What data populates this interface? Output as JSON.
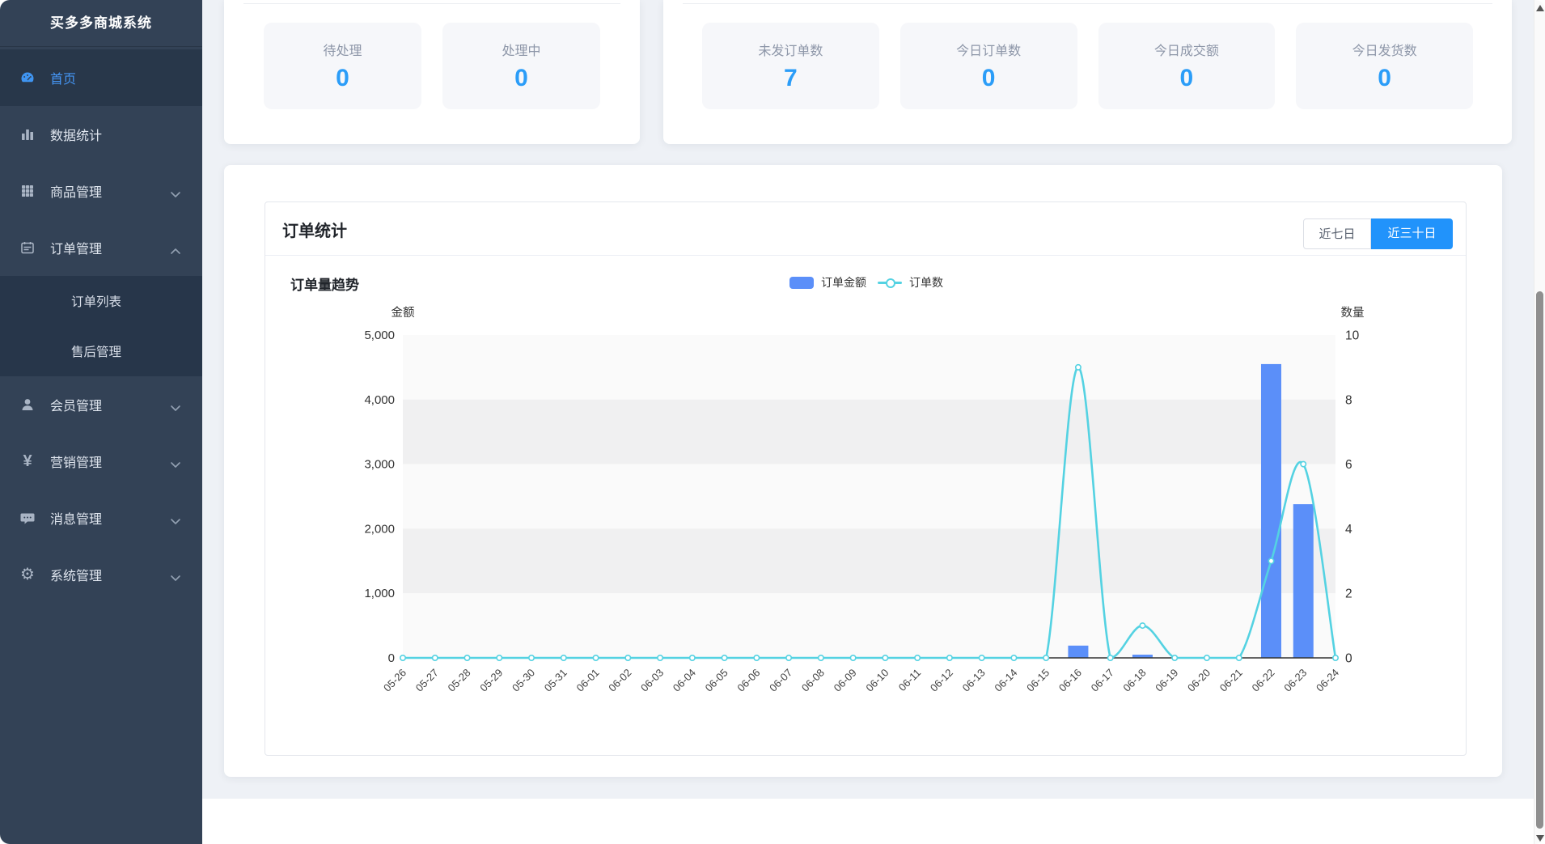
{
  "sidebar": {
    "title": "买多多商城系统",
    "items": [
      {
        "label": "首页",
        "icon": "dashboard-icon",
        "active": true,
        "chevron": null
      },
      {
        "label": "数据统计",
        "icon": "bar-chart-icon",
        "active": false,
        "chevron": null
      },
      {
        "label": "商品管理",
        "icon": "grid-icon",
        "active": false,
        "chevron": "down"
      },
      {
        "label": "订单管理",
        "icon": "order-icon",
        "active": false,
        "chevron": "up"
      },
      {
        "label": "会员管理",
        "icon": "user-icon",
        "active": false,
        "chevron": "down"
      },
      {
        "label": "营销管理",
        "icon": "yen-icon",
        "active": false,
        "chevron": "down"
      },
      {
        "label": "消息管理",
        "icon": "message-icon",
        "active": false,
        "chevron": "down"
      },
      {
        "label": "系统管理",
        "icon": "gear-icon",
        "active": false,
        "chevron": "down"
      }
    ],
    "submenu_parent": "订单管理",
    "submenu": [
      {
        "label": "订单列表"
      },
      {
        "label": "售后管理"
      }
    ]
  },
  "stats_card_1": {
    "items": [
      {
        "label": "待处理",
        "value": "0"
      },
      {
        "label": "处理中",
        "value": "0"
      }
    ]
  },
  "stats_card_2": {
    "items": [
      {
        "label": "未发订单数",
        "value": "7"
      },
      {
        "label": "今日订单数",
        "value": "0"
      },
      {
        "label": "今日成交额",
        "value": "0"
      },
      {
        "label": "今日发货数",
        "value": "0"
      }
    ]
  },
  "order_stats": {
    "title": "订单统计",
    "chart_title": "订单量趋势",
    "range_buttons": [
      {
        "label": "近七日",
        "active": false
      },
      {
        "label": "近三十日",
        "active": true
      }
    ],
    "legend": [
      {
        "label": "订单金额",
        "type": "bar"
      },
      {
        "label": "订单数",
        "type": "line"
      }
    ]
  },
  "chart_data": {
    "type": "bar+line",
    "title": "订单量趋势",
    "categories": [
      "05-26",
      "05-27",
      "05-28",
      "05-29",
      "05-30",
      "05-31",
      "06-01",
      "06-02",
      "06-03",
      "06-04",
      "06-05",
      "06-06",
      "06-07",
      "06-08",
      "06-09",
      "06-10",
      "06-11",
      "06-12",
      "06-13",
      "06-14",
      "06-15",
      "06-16",
      "06-17",
      "06-18",
      "06-19",
      "06-20",
      "06-21",
      "06-22",
      "06-23",
      "06-24"
    ],
    "series": [
      {
        "name": "订单金额",
        "type": "bar",
        "axis": "left",
        "values": [
          0,
          0,
          0,
          0,
          0,
          0,
          0,
          0,
          0,
          0,
          0,
          0,
          0,
          0,
          0,
          0,
          0,
          0,
          0,
          0,
          0,
          190,
          0,
          50,
          0,
          0,
          0,
          4550,
          2380,
          0
        ]
      },
      {
        "name": "订单数",
        "type": "line",
        "axis": "right",
        "values": [
          0,
          0,
          0,
          0,
          0,
          0,
          0,
          0,
          0,
          0,
          0,
          0,
          0,
          0,
          0,
          0,
          0,
          0,
          0,
          0,
          0,
          9,
          0,
          1,
          0,
          0,
          0,
          3,
          6,
          0
        ]
      }
    ],
    "left_axis": {
      "name": "金额",
      "min": 0,
      "max": 5000,
      "tick_step": 1000,
      "tick_labels": [
        "0",
        "1,000",
        "2,000",
        "3,000",
        "4,000",
        "5,000"
      ]
    },
    "right_axis": {
      "name": "数量",
      "min": 0,
      "max": 10,
      "tick_step": 2,
      "tick_labels": [
        "0",
        "2",
        "4",
        "6",
        "8",
        "10"
      ]
    },
    "grid": "horizontal-striped",
    "legend_position": "top-center"
  },
  "colors": {
    "bar_blue": "#5b8ff9",
    "line_teal": "#54d2e2",
    "button_blue": "#2193fb",
    "value_blue": "#2b9df8",
    "active_menu_blue": "#4596f5",
    "stripe_gray": "#f0f0f1",
    "stripe_light": "#fafafa",
    "axis_line": "#333333"
  }
}
